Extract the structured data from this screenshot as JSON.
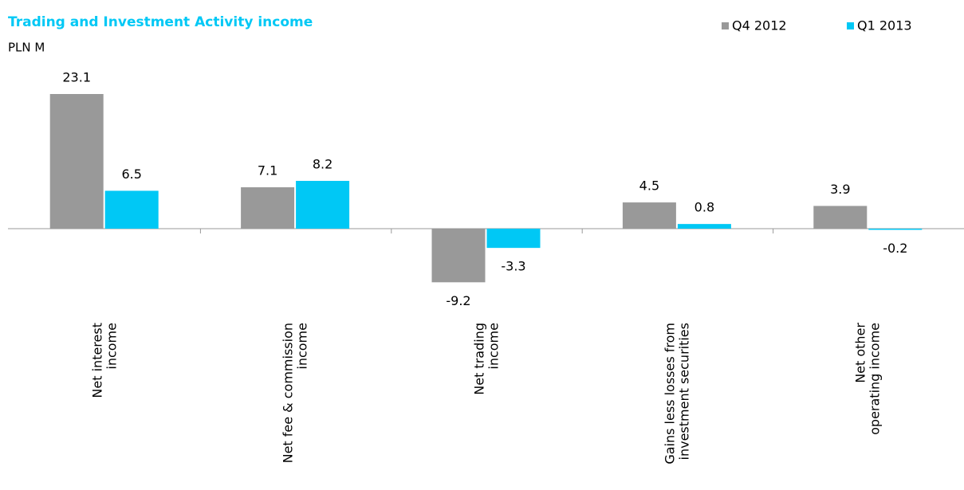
{
  "chart_data": {
    "type": "bar",
    "title": "Trading and Investment Activity income",
    "subtitle": "PLN M",
    "categories": [
      "Net interest\nincome",
      "Net fee & commission\nincome",
      "Net trading\nincome",
      "Gains less losses from\ninvestment securities",
      "Net other\noperating income"
    ],
    "series": [
      {
        "name": "Q4 2012",
        "color": "#999999",
        "values": [
          23.1,
          7.1,
          -9.2,
          4.5,
          3.9
        ]
      },
      {
        "name": "Q1 2013",
        "color": "#00c8f5",
        "values": [
          6.5,
          8.2,
          -3.3,
          0.8,
          -0.2
        ]
      }
    ],
    "legend": "top-right"
  }
}
